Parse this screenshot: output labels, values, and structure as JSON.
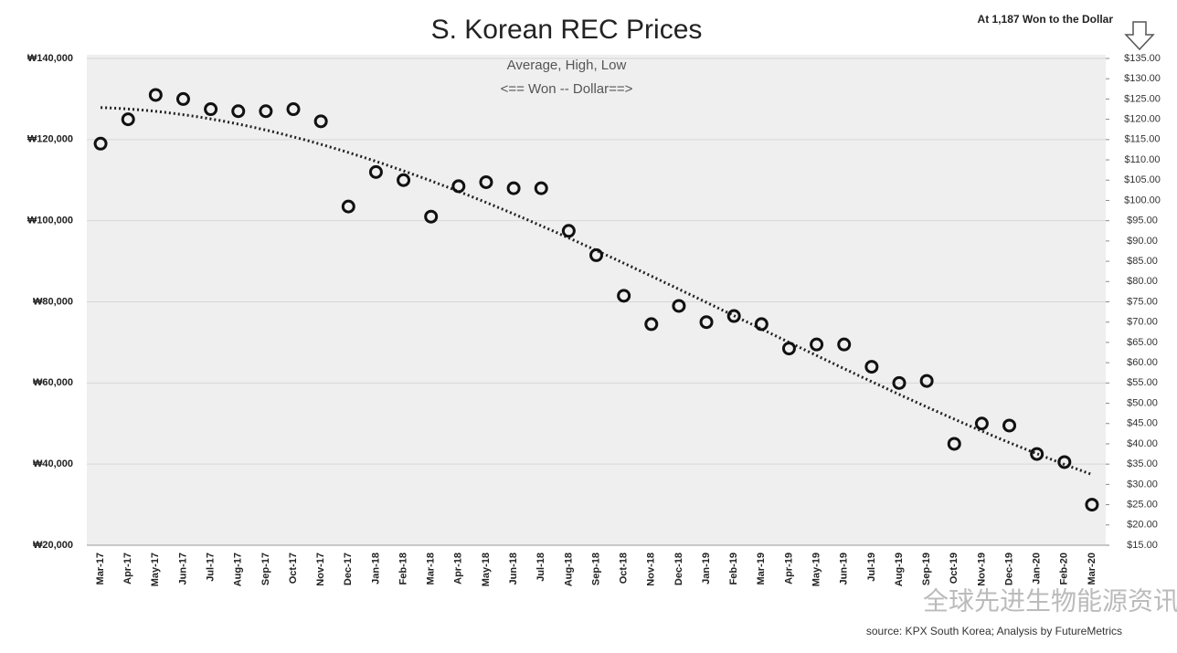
{
  "chart_data": {
    "type": "scatter",
    "title": "S. Korean REC Prices",
    "subtitle": "Average, High, Low",
    "axis_note": "<== Won  -- Dollar==>",
    "exchange_note": "At 1,187 Won to the Dollar",
    "source": "source: KPX South Korea; Analysis by FutureMetrics",
    "watermark": "全球先进生物能源资讯",
    "categories": [
      "Mar-17",
      "Apr-17",
      "May-17",
      "Jun-17",
      "Jul-17",
      "Aug-17",
      "Sep-17",
      "Oct-17",
      "Nov-17",
      "Dec-17",
      "Jan-18",
      "Feb-18",
      "Mar-18",
      "Apr-18",
      "May-18",
      "Jun-18",
      "Jul-18",
      "Aug-18",
      "Sep-18",
      "Oct-18",
      "Nov-18",
      "Dec-18",
      "Jan-19",
      "Feb-19",
      "Mar-19",
      "Apr-19",
      "May-19",
      "Jun-19",
      "Jul-19",
      "Aug-19",
      "Sep-19",
      "Oct-19",
      "Nov-19",
      "Dec-19",
      "Jan-20",
      "Feb-20",
      "Mar-20"
    ],
    "values": [
      119000,
      125000,
      131000,
      130000,
      127500,
      127000,
      127000,
      127500,
      124500,
      103500,
      112000,
      110000,
      101000,
      108500,
      109500,
      108000,
      108000,
      97500,
      91500,
      81500,
      74500,
      79000,
      75000,
      76500,
      74500,
      68500,
      69500,
      69500,
      64000,
      60000,
      60500,
      45000,
      50000,
      49500,
      42500,
      40500,
      30000
    ],
    "color": "#111111",
    "trendline": "dotted",
    "ylim": [
      20000,
      140000
    ],
    "yticks": [
      {
        "value": 20000,
        "label": "₩20,000"
      },
      {
        "value": 40000,
        "label": "₩40,000"
      },
      {
        "value": 60000,
        "label": "₩60,000"
      },
      {
        "value": 80000,
        "label": "₩80,000"
      },
      {
        "value": 100000,
        "label": "₩100,000"
      },
      {
        "value": 120000,
        "label": "₩120,000"
      },
      {
        "value": 140000,
        "label": "₩140,000"
      }
    ],
    "y2lim": [
      15,
      135
    ],
    "y2ticks": [
      {
        "value": 15,
        "label": "$15.00"
      },
      {
        "value": 20,
        "label": "$20.00"
      },
      {
        "value": 25,
        "label": "$25.00"
      },
      {
        "value": 30,
        "label": "$30.00"
      },
      {
        "value": 35,
        "label": "$35.00"
      },
      {
        "value": 40,
        "label": "$40.00"
      },
      {
        "value": 45,
        "label": "$45.00"
      },
      {
        "value": 50,
        "label": "$50.00"
      },
      {
        "value": 55,
        "label": "$55.00"
      },
      {
        "value": 60,
        "label": "$60.00"
      },
      {
        "value": 65,
        "label": "$65.00"
      },
      {
        "value": 70,
        "label": "$70.00"
      },
      {
        "value": 75,
        "label": "$75.00"
      },
      {
        "value": 80,
        "label": "$80.00"
      },
      {
        "value": 85,
        "label": "$85.00"
      },
      {
        "value": 90,
        "label": "$90.00"
      },
      {
        "value": 95,
        "label": "$95.00"
      },
      {
        "value": 100,
        "label": "$100.00"
      },
      {
        "value": 105,
        "label": "$105.00"
      },
      {
        "value": 110,
        "label": "$110.00"
      },
      {
        "value": 115,
        "label": "$115.00"
      },
      {
        "value": 120,
        "label": "$120.00"
      },
      {
        "value": 125,
        "label": "$125.00"
      },
      {
        "value": 130,
        "label": "$130.00"
      },
      {
        "value": 135,
        "label": "$135.00"
      }
    ],
    "grid": true
  }
}
